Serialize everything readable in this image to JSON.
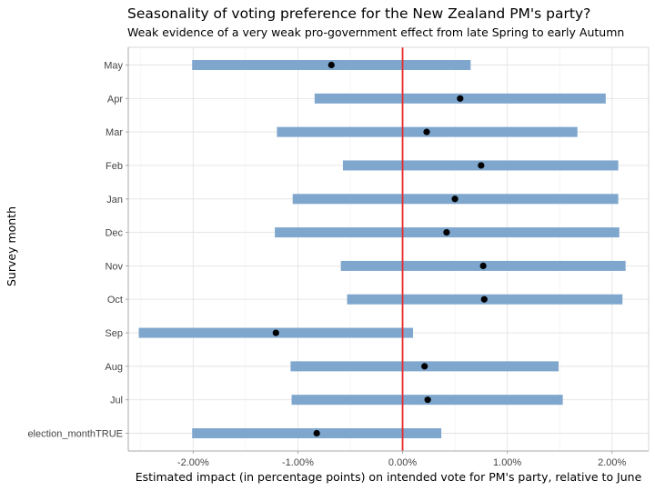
{
  "chart_data": {
    "type": "interval",
    "title": "Seasonality of voting preference for the New Zealand PM's party?",
    "subtitle": "Weak evidence of a very weak pro-government effect from late Spring to early Autumn",
    "xlabel": "Estimated impact (in percentage points) on intended vote for PM's party, relative to June",
    "ylabel": "Survey month",
    "xlim": [
      -0.0262,
      0.0235
    ],
    "x_ticks": [
      -0.02,
      -0.01,
      0.0,
      0.01,
      0.02
    ],
    "x_tick_labels": [
      "-2.00%",
      "-1.00%",
      "0.00%",
      "1.00%",
      "2.00%"
    ],
    "reference_line": {
      "x": 0.0,
      "color": "#e8282b"
    },
    "interval_color": "#7fa7cd",
    "point_color": "#000000",
    "grid": true,
    "categories": [
      "May",
      "Apr",
      "Mar",
      "Feb",
      "Jan",
      "Dec",
      "Nov",
      "Oct",
      "Sep",
      "Aug",
      "Jul",
      "election_monthTRUE"
    ],
    "estimates": [
      -0.0068,
      0.0055,
      0.0023,
      0.0075,
      0.005,
      0.0042,
      0.0077,
      0.0078,
      -0.0121,
      0.0021,
      0.0024,
      -0.0082
    ],
    "lower": [
      -0.0201,
      -0.0084,
      -0.012,
      -0.0057,
      -0.0105,
      -0.0122,
      -0.0059,
      -0.0053,
      -0.0252,
      -0.0107,
      -0.0106,
      -0.0201
    ],
    "upper": [
      0.0065,
      0.0194,
      0.0167,
      0.0206,
      0.0206,
      0.0207,
      0.0213,
      0.021,
      0.001,
      0.0149,
      0.0153,
      0.0037
    ]
  }
}
